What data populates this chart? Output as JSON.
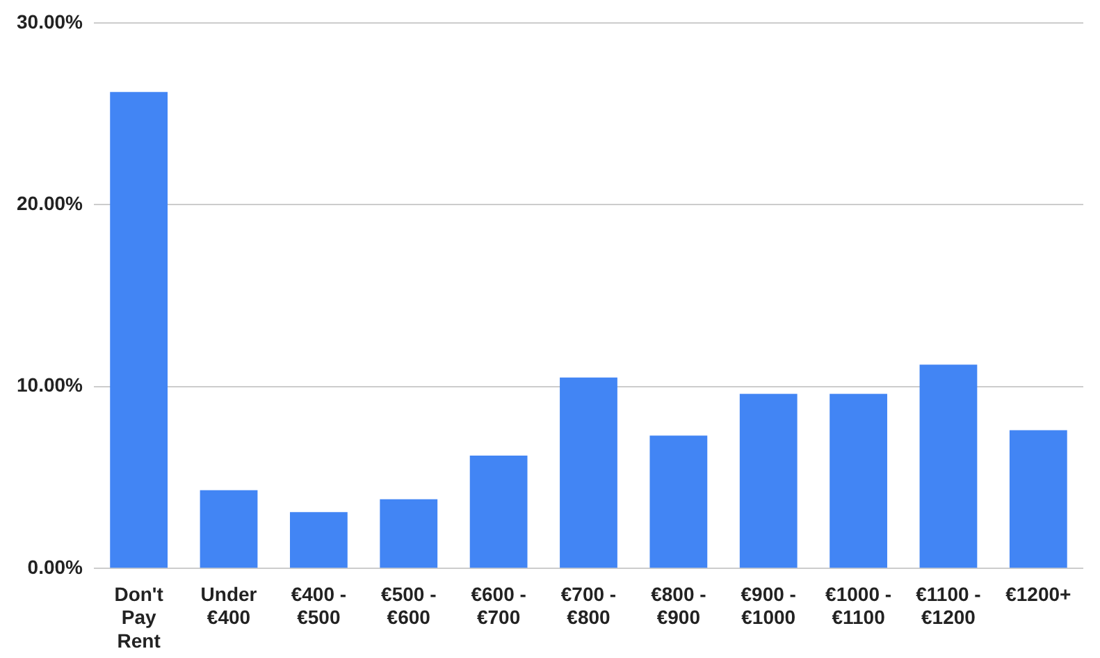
{
  "chart_data": {
    "type": "bar",
    "categories": [
      "Don't Pay Rent",
      "Under €400",
      "€400 - €500",
      "€500 - €600",
      "€600 - €700",
      "€700 - €800",
      "€800 - €900",
      "€900 - €1000",
      "€1000 - €1100",
      "€1100 - €1200",
      "€1200+"
    ],
    "values": [
      26.2,
      4.3,
      3.1,
      3.8,
      6.2,
      10.5,
      7.3,
      9.6,
      9.6,
      11.2,
      7.6
    ],
    "color": "#4285f4",
    "ylim": [
      0,
      30
    ],
    "yticks": [
      {
        "value": 0,
        "label": "0.00%"
      },
      {
        "value": 10,
        "label": "10.00%"
      },
      {
        "value": 20,
        "label": "20.00%"
      },
      {
        "value": 30,
        "label": "30.00%"
      }
    ],
    "grid": "y",
    "legend": false
  }
}
